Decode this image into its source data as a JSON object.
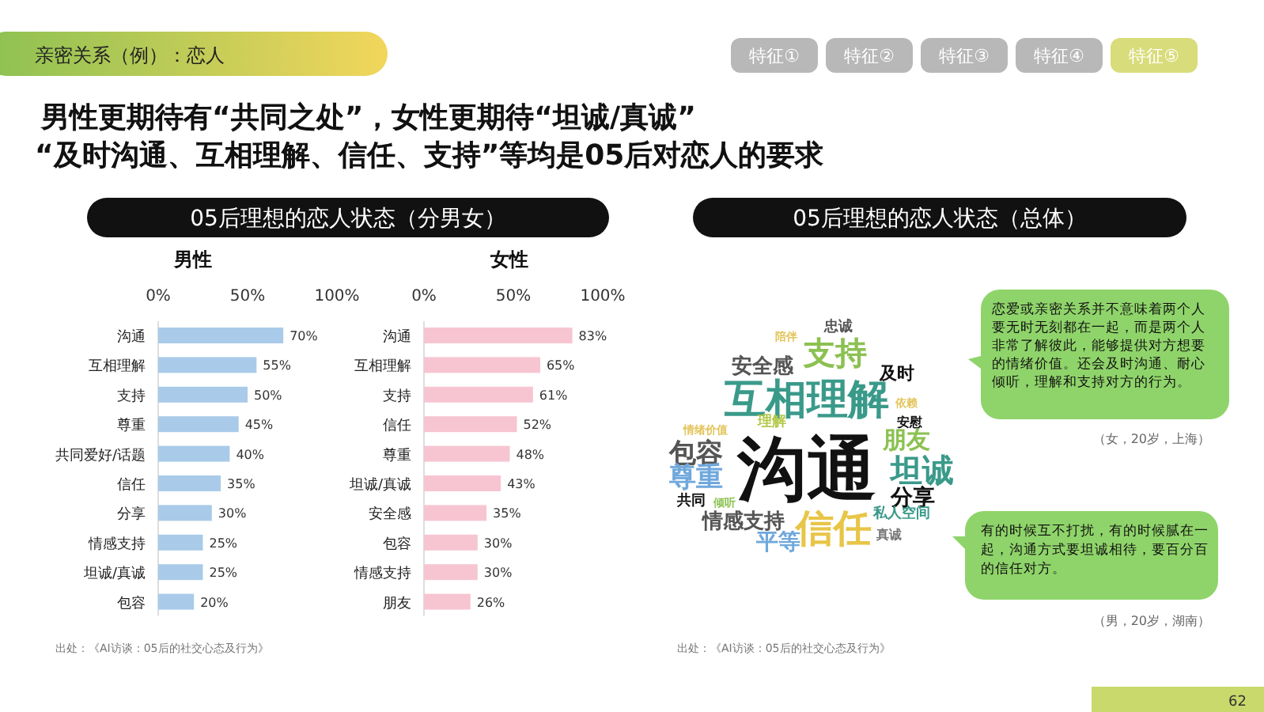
{
  "chart_data": [
    {
      "type": "bar",
      "orientation": "horizontal",
      "title": "05后理想的恋人状态（分男女）",
      "subtitle": "男性",
      "categories": [
        "沟通",
        "互相理解",
        "支持",
        "尊重",
        "共同爱好/话题",
        "信任",
        "分享",
        "情感支持",
        "坦诚/真诚",
        "包容"
      ],
      "values": [
        70,
        55,
        50,
        45,
        40,
        35,
        30,
        25,
        25,
        20
      ],
      "value_labels": [
        "70%",
        "55%",
        "50%",
        "45%",
        "40%",
        "35%",
        "30%",
        "25%",
        "25%",
        "20%"
      ],
      "color": "#a9cbe9",
      "xlim": [
        0,
        100
      ],
      "xticks": [
        {
          "value": 0,
          "label": "0%"
        },
        {
          "value": 50,
          "label": "50%"
        },
        {
          "value": 100,
          "label": "100%"
        }
      ],
      "annotations": [
        "亲密关系（例）：恋人",
        "特征①",
        "特征②",
        "特征③",
        "特征④",
        "特征⑤",
        "男性更期待有“共同之处”，女性更期待“坦诚/真诚”",
        "“及时沟通、互相理解、信任、支持”等均是05后对恋人的要求",
        "出处：《AI访谈：05后的社交心态及行为》"
      ]
    },
    {
      "type": "bar",
      "orientation": "horizontal",
      "subtitle": "女性",
      "categories": [
        "沟通",
        "互相理解",
        "支持",
        "信任",
        "尊重",
        "坦诚/真诚",
        "安全感",
        "包容",
        "情感支持",
        "朋友"
      ],
      "values": [
        83,
        65,
        61,
        52,
        48,
        43,
        35,
        30,
        30,
        26
      ],
      "value_labels": [
        "83%",
        "65%",
        "61%",
        "52%",
        "48%",
        "43%",
        "35%",
        "30%",
        "30%",
        "26%"
      ],
      "color": "#f7c5d2",
      "xlim": [
        0,
        100
      ],
      "xticks": [
        {
          "value": 0,
          "label": "0%"
        },
        {
          "value": 50,
          "label": "50%"
        },
        {
          "value": 100,
          "label": "100%"
        }
      ]
    },
    {
      "type": "other",
      "title": "05后理想的恋人状态（总体）",
      "annotations": [
        "忠诚",
        "陪伴",
        "支持",
        "安全感",
        "及时",
        "互相理解",
        "依赖",
        "安慰",
        "情绪价值",
        "理解",
        "朋友",
        "包容",
        "沟通",
        "坦诚",
        "尊重",
        "分享",
        "共同",
        "倾听",
        "情感支持",
        "私人空间",
        "信任",
        "真诚",
        "平等",
        "恋爱或亲密关系并不意味着两个人要无时无刻都在一起，而是两个人非常了解彼此，能够提供对方想要的情绪价值。还会及时沟通、耐心倾听，理解和支持对方的行为。",
        "（女，20岁，上海）",
        "有的时候互不打扰，有的时候腻在一起，沟通方式要坦诚相待，要百分百的信任对方。",
        "（男，20岁，湖南）",
        "出处：《AI访谈：05后的社交心态及行为》",
        "62"
      ]
    }
  ]
}
